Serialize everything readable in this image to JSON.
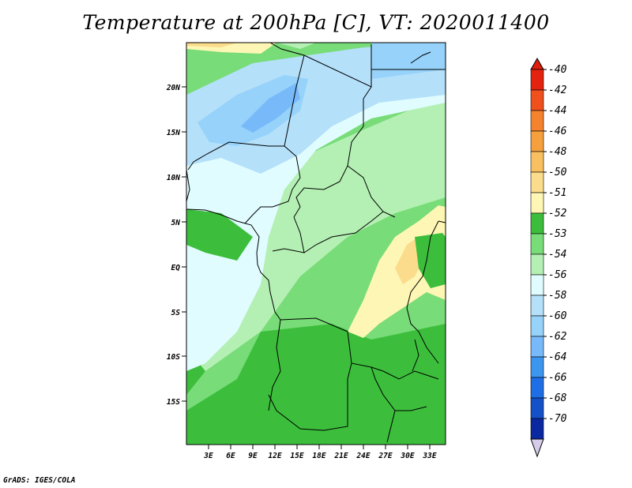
{
  "title": "Temperature at 200hPa [C], VT: 2020011400",
  "credit": "GrADS: IGES/COLA",
  "map": {
    "lat_labels": [
      "20N",
      "15N",
      "10N",
      "5N",
      "EQ",
      "5S",
      "10S",
      "15S"
    ],
    "lon_labels": [
      "3E",
      "6E",
      "9E",
      "12E",
      "15E",
      "18E",
      "21E",
      "24E",
      "27E",
      "30E",
      "33E"
    ]
  },
  "colorbar": {
    "levels": [
      {
        "label": "-40",
        "color": "#e3230f"
      },
      {
        "label": "-42",
        "color": "#f0501e"
      },
      {
        "label": "-44",
        "color": "#f5822d"
      },
      {
        "label": "-46",
        "color": "#f5a03c"
      },
      {
        "label": "-48",
        "color": "#f8c060"
      },
      {
        "label": "-50",
        "color": "#fadc8c"
      },
      {
        "label": "-51",
        "color": "#fdf6b4"
      },
      {
        "label": "-52",
        "color": "#3cbe3c"
      },
      {
        "label": "-53",
        "color": "#78dc78"
      },
      {
        "label": "-54",
        "color": "#b4f0b4"
      },
      {
        "label": "-56",
        "color": "#e0fcff"
      },
      {
        "label": "-58",
        "color": "#b4e0fa"
      },
      {
        "label": "-60",
        "color": "#96d2fa"
      },
      {
        "label": "-62",
        "color": "#78b9fa"
      },
      {
        "label": "-64",
        "color": "#3c96f0"
      },
      {
        "label": "-66",
        "color": "#1e6ee6"
      },
      {
        "label": "-68",
        "color": "#1450c8"
      },
      {
        "label": "-70",
        "color": "#0a28a0"
      }
    ],
    "top_color": "#dd1e0a",
    "bottom_color": "#0a0a78",
    "under_color": "#d4cce8"
  }
}
